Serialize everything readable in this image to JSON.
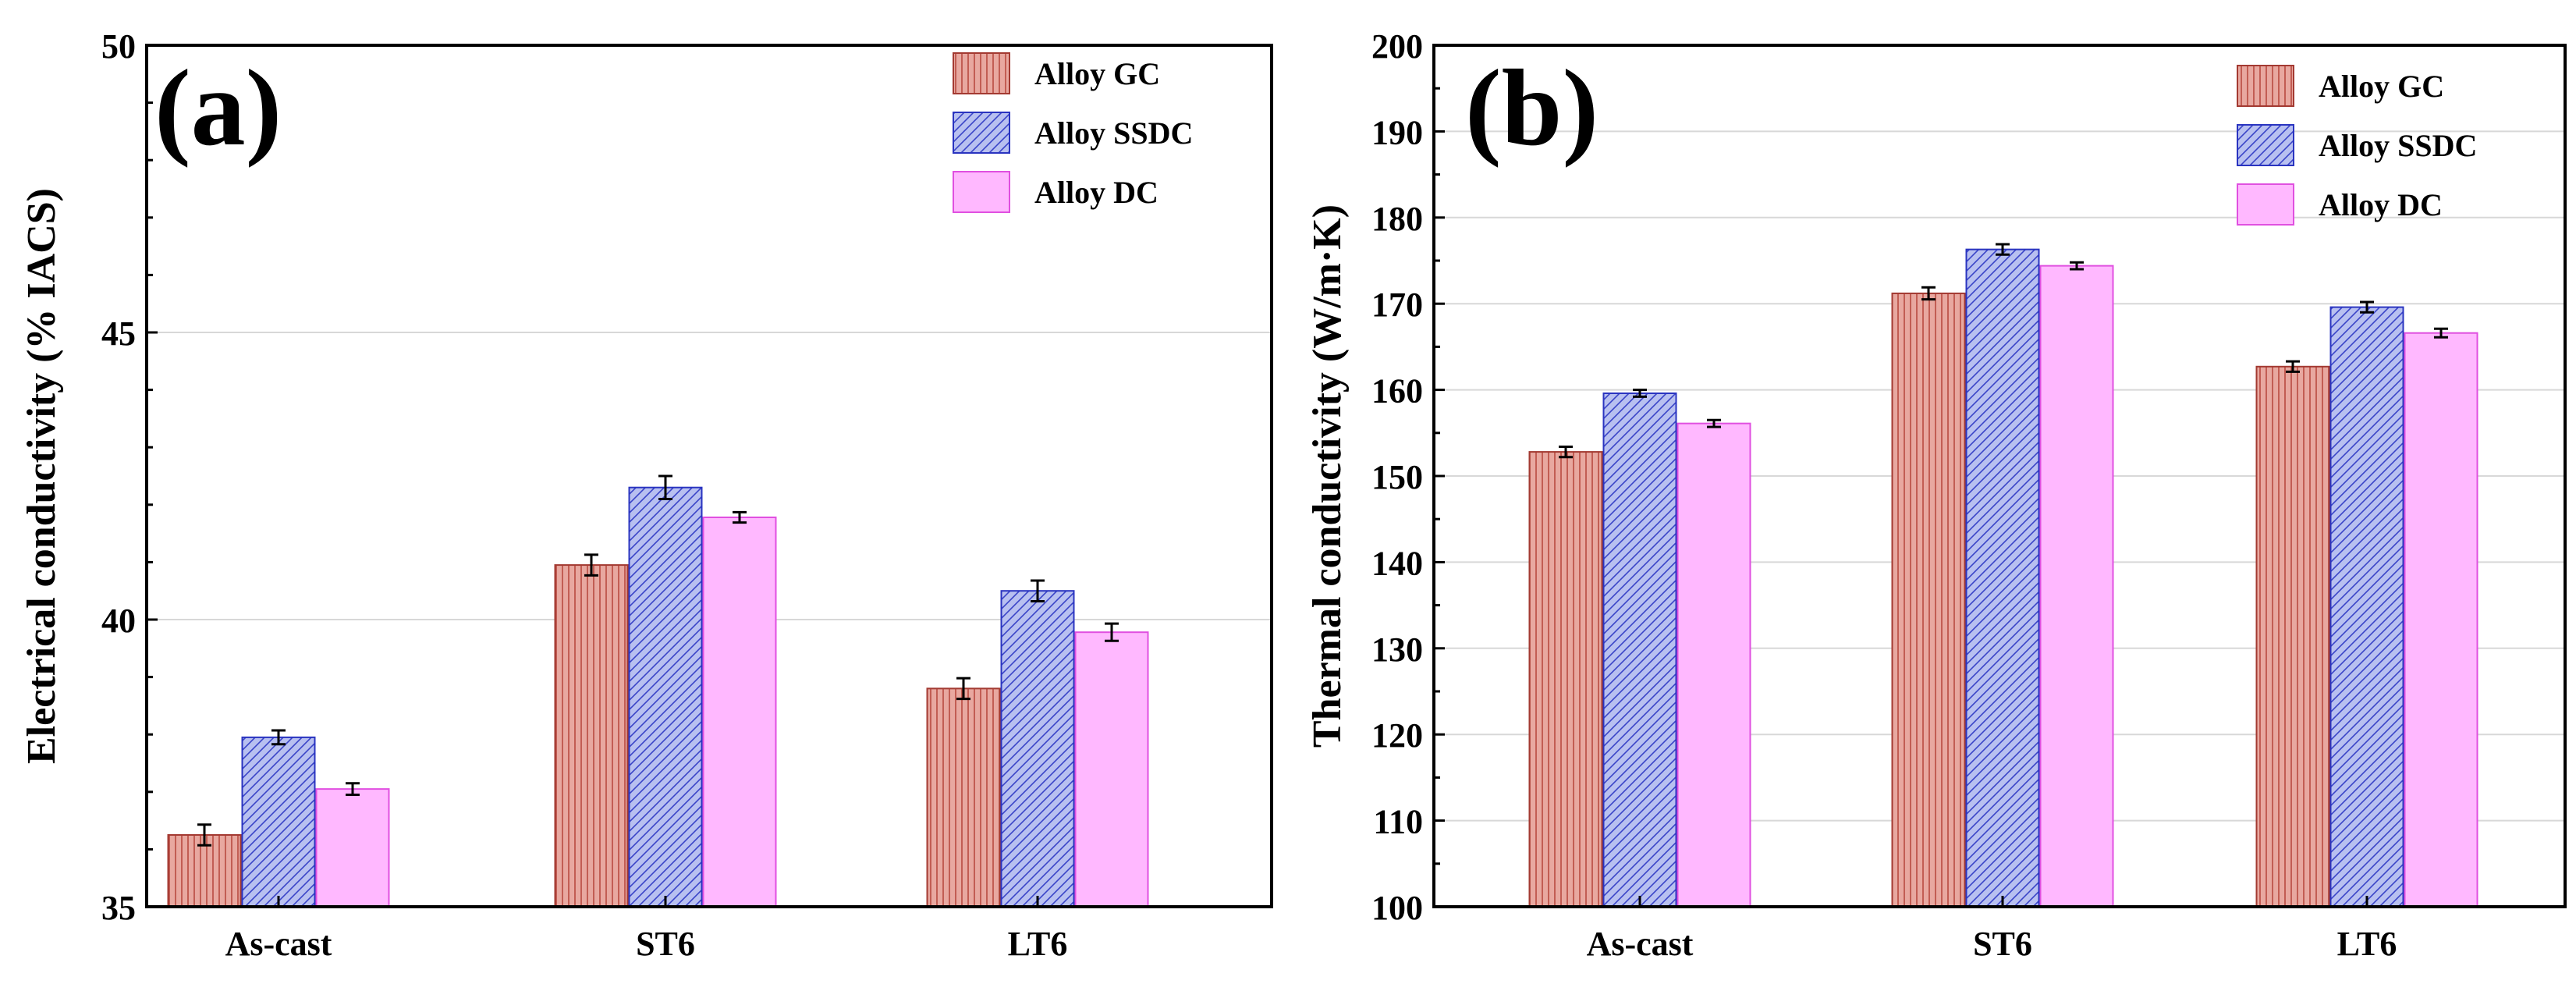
{
  "colors": {
    "gc_fill": "#e8a8a0",
    "gc_stripe": "#b84a40",
    "gc_edge": "#a33a32",
    "ssdc_fill": "#b8c0f0",
    "ssdc_stripe": "#3a44c8",
    "ssdc_edge": "#2a34c0",
    "dc_fill": "#ffb8ff",
    "dc_edge": "#e050e0",
    "grid": "#d8d8d8",
    "axis": "#000000"
  },
  "chart_data": [
    {
      "type": "bar",
      "panel_label": "(a)",
      "categories": [
        "As-cast",
        "ST6",
        "LT6"
      ],
      "xlabel": "",
      "ylabel": "Electrical conductivity (% IACS)",
      "ylim": [
        35,
        50
      ],
      "yticks": [
        35,
        40,
        45,
        50
      ],
      "grid": true,
      "legend_position": "top-right",
      "series": [
        {
          "name": "Alloy GC",
          "values": [
            36.25,
            40.95,
            38.8
          ],
          "errors": [
            0.18,
            0.18,
            0.18
          ]
        },
        {
          "name": "Alloy SSDC",
          "values": [
            37.95,
            42.3,
            40.5
          ],
          "errors": [
            0.12,
            0.2,
            0.18
          ]
        },
        {
          "name": "Alloy DC",
          "values": [
            37.05,
            41.78,
            39.78
          ],
          "errors": [
            0.1,
            0.09,
            0.15
          ]
        }
      ]
    },
    {
      "type": "bar",
      "panel_label": "(b)",
      "categories": [
        "As-cast",
        "ST6",
        "LT6"
      ],
      "xlabel": "",
      "ylabel": "Thermal conductivity (W/m·K)",
      "ylim": [
        100,
        200
      ],
      "yticks": [
        100,
        110,
        120,
        130,
        140,
        150,
        160,
        170,
        180,
        190,
        200
      ],
      "grid": true,
      "legend_position": "top-right",
      "series": [
        {
          "name": "Alloy GC",
          "values": [
            152.8,
            171.2,
            162.7
          ],
          "errors": [
            0.6,
            0.7,
            0.6
          ]
        },
        {
          "name": "Alloy SSDC",
          "values": [
            159.6,
            176.3,
            169.6
          ],
          "errors": [
            0.4,
            0.6,
            0.6
          ]
        },
        {
          "name": "Alloy DC",
          "values": [
            156.1,
            174.4,
            166.6
          ],
          "errors": [
            0.4,
            0.4,
            0.5
          ]
        }
      ]
    }
  ]
}
